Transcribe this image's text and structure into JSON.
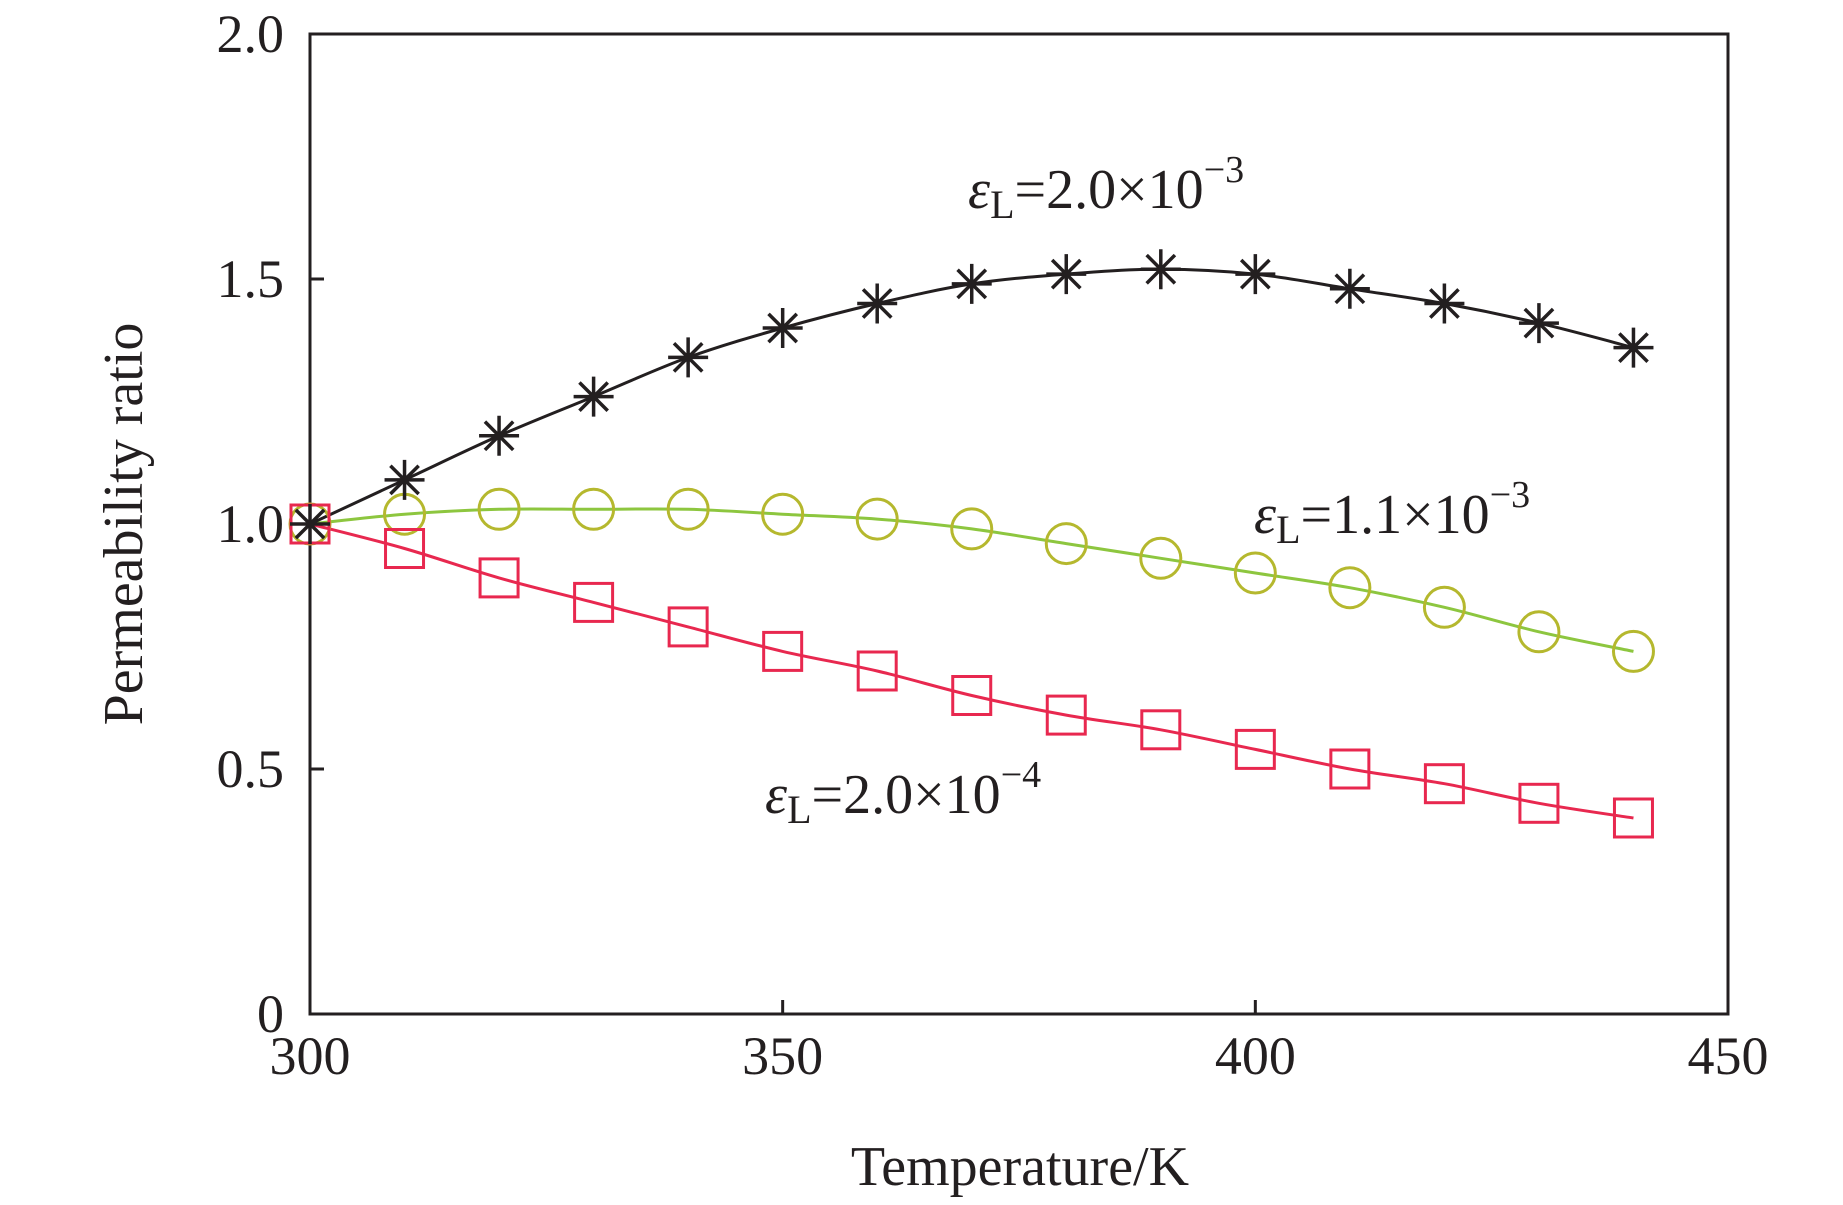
{
  "chart_data": {
    "type": "line",
    "title": "",
    "xlabel": "Temperature/K",
    "ylabel": "Permeability ratio",
    "xlim": [
      300,
      450
    ],
    "ylim": [
      0,
      2.0
    ],
    "xticks": [
      300,
      350,
      400,
      450
    ],
    "xtick_labels": [
      "300",
      "350",
      "400",
      "450"
    ],
    "yticks": [
      0,
      0.5,
      1.0,
      1.5,
      2.0
    ],
    "ytick_labels": [
      "0",
      "0.5",
      "1.0",
      "1.5",
      "2.0"
    ],
    "grid": false,
    "legend": "none",
    "x": [
      300,
      310,
      320,
      330,
      340,
      350,
      360,
      370,
      380,
      390,
      400,
      410,
      420,
      430,
      440
    ],
    "series": [
      {
        "label_symbol": "ε",
        "label_sub": "L",
        "label_value": "=2.0×10",
        "label_exp": "−3",
        "marker": "asterisk",
        "color": "#231f20",
        "values": [
          1.0,
          1.09,
          1.18,
          1.26,
          1.34,
          1.4,
          1.45,
          1.49,
          1.51,
          1.52,
          1.51,
          1.48,
          1.45,
          1.41,
          1.36
        ]
      },
      {
        "label_symbol": "ε",
        "label_sub": "L",
        "label_value": "=1.1×10",
        "label_exp": "−3",
        "marker": "circle",
        "color": "#8dc63f",
        "marker_color": "#b5b82e",
        "values": [
          1.0,
          1.02,
          1.03,
          1.03,
          1.03,
          1.02,
          1.01,
          0.99,
          0.96,
          0.93,
          0.9,
          0.87,
          0.83,
          0.78,
          0.74
        ]
      },
      {
        "label_symbol": "ε",
        "label_sub": "L",
        "label_value": "=2.0×10",
        "label_exp": "−4",
        "marker": "square",
        "color": "#e8284f",
        "values": [
          1.0,
          0.95,
          0.89,
          0.84,
          0.79,
          0.74,
          0.7,
          0.65,
          0.61,
          0.58,
          0.54,
          0.5,
          0.47,
          0.43,
          0.4
        ]
      }
    ]
  }
}
